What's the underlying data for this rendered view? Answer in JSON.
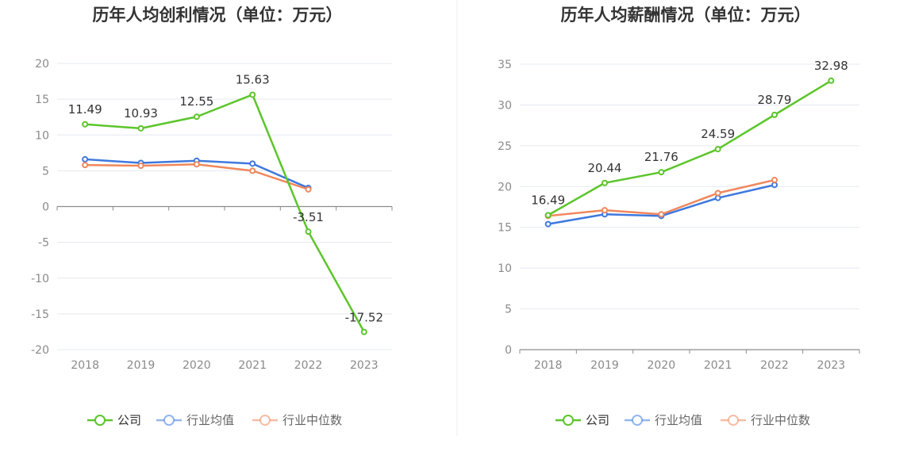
{
  "colors": {
    "company": "#5cc52b",
    "industry_avg": "#3e78de",
    "industry_median": "#f0875c",
    "divider": "#eeeeee"
  },
  "chart_data": [
    {
      "type": "line",
      "title": "历年人均创利情况（单位：万元）",
      "categories": [
        "2018",
        "2019",
        "2020",
        "2021",
        "2022",
        "2023"
      ],
      "ylim": [
        -20,
        20
      ],
      "yticks": [
        20,
        15,
        10,
        5,
        0,
        -5,
        -10,
        -15,
        -20
      ],
      "ytick_labels": [
        "20",
        "15",
        "10",
        "5",
        "0",
        "-5",
        "-10",
        "-15",
        "-20"
      ],
      "grid": true,
      "legend": "bottom-center",
      "series": [
        {
          "name": "公司",
          "key": "company",
          "values": [
            11.49,
            10.93,
            12.55,
            15.63,
            -3.51,
            -17.52
          ],
          "labels": [
            "11.49",
            "10.93",
            "12.55",
            "15.63",
            "-3.51",
            "-17.52"
          ]
        },
        {
          "name": "行业均值",
          "key": "industry_avg",
          "values": [
            6.6,
            6.1,
            6.4,
            6.0,
            2.6,
            null
          ]
        },
        {
          "name": "行业中位数",
          "key": "industry_median",
          "values": [
            5.8,
            5.7,
            5.9,
            5.0,
            2.4,
            null
          ]
        }
      ]
    },
    {
      "type": "line",
      "title": "历年人均薪酬情况（单位：万元）",
      "categories": [
        "2018",
        "2019",
        "2020",
        "2021",
        "2022",
        "2023"
      ],
      "ylim": [
        0,
        35
      ],
      "yticks": [
        35,
        30,
        25,
        20,
        15,
        10,
        5,
        0
      ],
      "ytick_labels": [
        "35",
        "30",
        "25",
        "20",
        "15",
        "10",
        "5",
        "0"
      ],
      "grid": true,
      "legend": "bottom-center",
      "series": [
        {
          "name": "公司",
          "key": "company",
          "values": [
            16.49,
            20.44,
            21.76,
            24.59,
            28.79,
            32.98
          ],
          "labels": [
            "16.49",
            "20.44",
            "21.76",
            "24.59",
            "28.79",
            "32.98"
          ]
        },
        {
          "name": "行业均值",
          "key": "industry_avg",
          "values": [
            15.4,
            16.6,
            16.4,
            18.6,
            20.2,
            null
          ]
        },
        {
          "name": "行业中位数",
          "key": "industry_median",
          "values": [
            16.4,
            17.1,
            16.6,
            19.2,
            20.8,
            null
          ]
        }
      ]
    }
  ]
}
